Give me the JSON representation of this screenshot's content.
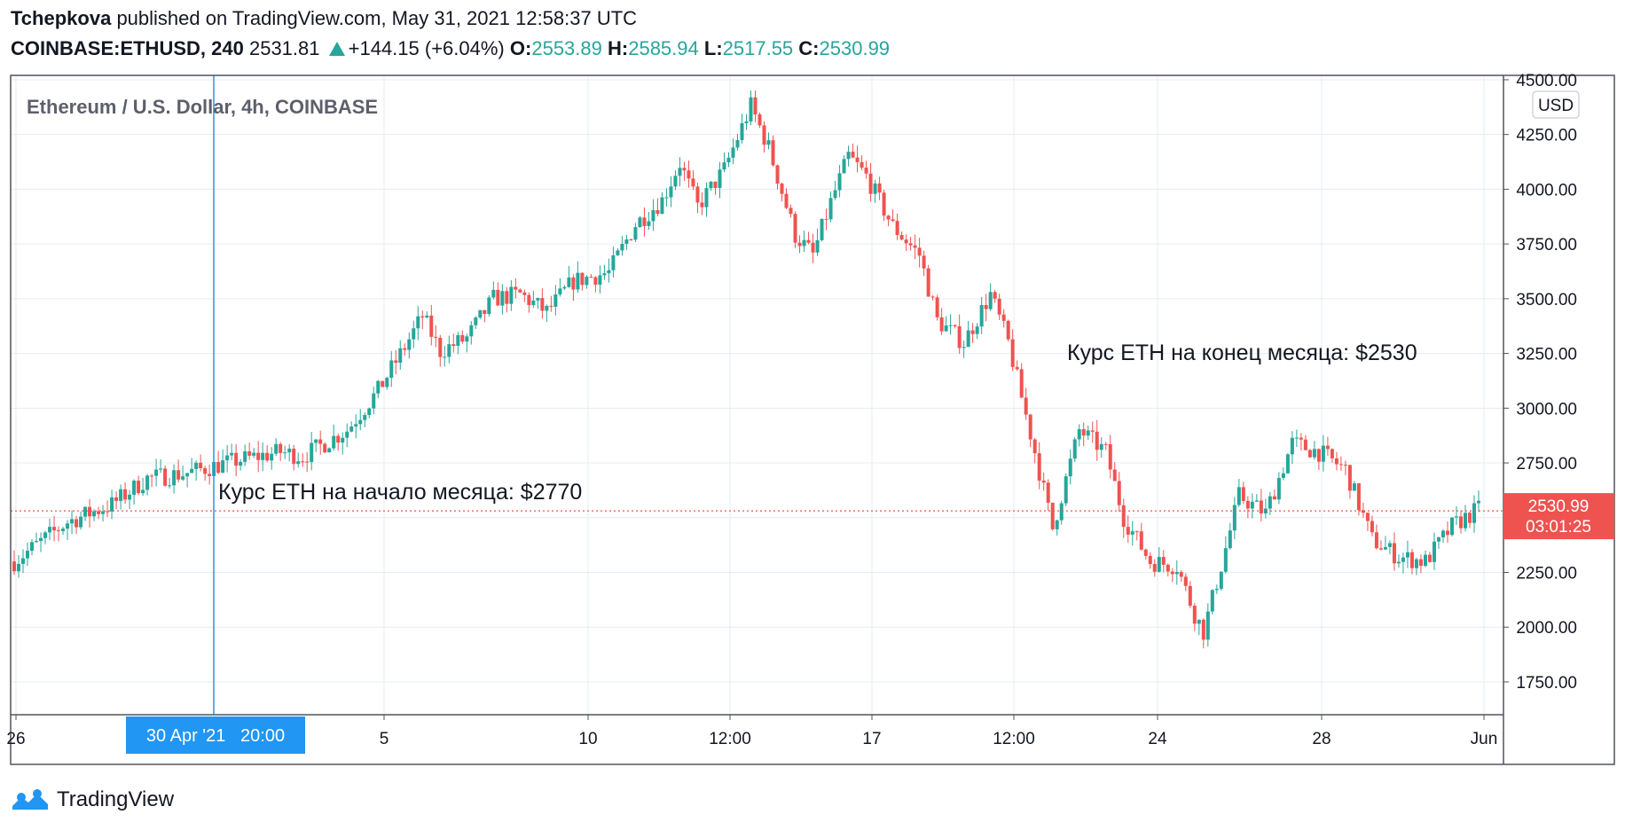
{
  "header": {
    "author": "Tchepkova",
    "published_text": "published on TradingView.com, May 31, 2021 12:58:37 UTC",
    "symbol": "COINBASE:ETHUSD, 240",
    "last": "2531.81",
    "change": "+144.15 (+6.04%)",
    "open_label": "O:",
    "open": "2553.89",
    "high_label": "H:",
    "high": "2585.94",
    "low_label": "L:",
    "low": "2517.55",
    "close_label": "C:",
    "close": "2530.99"
  },
  "footer": {
    "brand": "TradingView",
    "logo_icon": "tradingview-logo-icon"
  },
  "colors": {
    "up": "#26a69a",
    "down": "#ef5350",
    "crosshair": "#2196f3",
    "price_line": "#ef5350"
  },
  "chart_data": {
    "type": "candlestick",
    "title": "Ethereum / U.S. Dollar, 4h, COINBASE",
    "currency": "USD",
    "y_ticks": [
      "4500.00",
      "4250.00",
      "4000.00",
      "3750.00",
      "3500.00",
      "3250.00",
      "3000.00",
      "2750.00",
      "2500.00",
      "2250.00",
      "2000.00",
      "1750.00"
    ],
    "ylim": [
      1600,
      4520
    ],
    "x_ticks": [
      "26",
      "5",
      "10",
      "12:00",
      "17",
      "12:00",
      "24",
      "28",
      "Jun"
    ],
    "crosshair_label": "30 Apr '21   20:00",
    "last_price_label": "2530.99",
    "countdown_label": "03:01:25",
    "last_price": 2530.99,
    "annotations": [
      {
        "text": "Курс ETH на начало месяца: $2770"
      },
      {
        "text": "Курс ETH на конец месяца: $2530"
      }
    ],
    "close_path": [
      [
        0,
        2300
      ],
      [
        12,
        2480
      ],
      [
        22,
        2560
      ],
      [
        30,
        2680
      ],
      [
        38,
        2700
      ],
      [
        50,
        2760
      ],
      [
        60,
        2800
      ],
      [
        65,
        2780
      ],
      [
        75,
        2900
      ],
      [
        82,
        3080
      ],
      [
        88,
        3280
      ],
      [
        92,
        3420
      ],
      [
        96,
        3260
      ],
      [
        102,
        3320
      ],
      [
        108,
        3500
      ],
      [
        114,
        3520
      ],
      [
        120,
        3440
      ],
      [
        126,
        3580
      ],
      [
        134,
        3620
      ],
      [
        140,
        3840
      ],
      [
        146,
        3950
      ],
      [
        150,
        4120
      ],
      [
        154,
        3920
      ],
      [
        160,
        4090
      ],
      [
        166,
        4380
      ],
      [
        170,
        4190
      ],
      [
        176,
        3790
      ],
      [
        180,
        3700
      ],
      [
        184,
        3940
      ],
      [
        188,
        4150
      ],
      [
        192,
        4060
      ],
      [
        198,
        3830
      ],
      [
        204,
        3700
      ],
      [
        208,
        3400
      ],
      [
        214,
        3300
      ],
      [
        220,
        3520
      ],
      [
        224,
        3300
      ],
      [
        230,
        2800
      ],
      [
        234,
        2450
      ],
      [
        240,
        2900
      ],
      [
        246,
        2800
      ],
      [
        250,
        2500
      ],
      [
        256,
        2300
      ],
      [
        262,
        2280
      ],
      [
        266,
        2060
      ],
      [
        268,
        1980
      ],
      [
        272,
        2280
      ],
      [
        276,
        2600
      ],
      [
        282,
        2520
      ],
      [
        288,
        2840
      ],
      [
        294,
        2800
      ],
      [
        300,
        2720
      ],
      [
        306,
        2400
      ],
      [
        312,
        2320
      ],
      [
        318,
        2300
      ],
      [
        324,
        2460
      ],
      [
        330,
        2540
      ]
    ]
  }
}
